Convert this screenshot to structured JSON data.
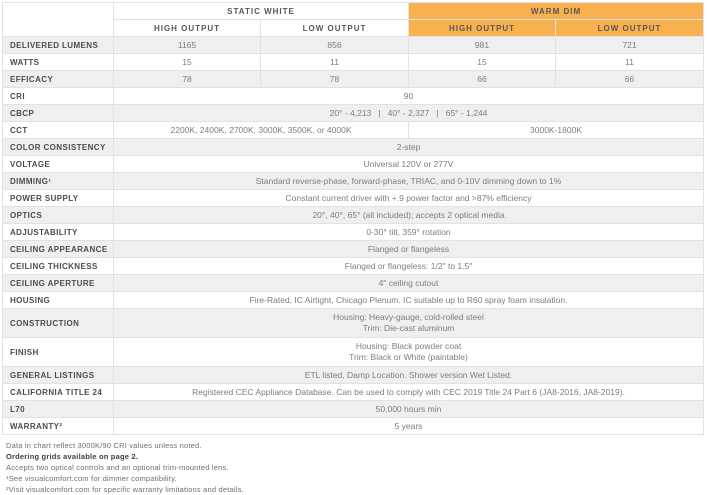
{
  "colors": {
    "warm_dim_orange": "#f8b14e",
    "zebra_gray": "#efeff0",
    "grid_border": "#e2e2e3",
    "label_text": "#4b4c4e",
    "value_text": "#7c7d80"
  },
  "table": {
    "corner_label": "",
    "groups": [
      {
        "label": "STATIC WHITE",
        "style": "white"
      },
      {
        "label": "WARM DIM",
        "style": "orange"
      }
    ],
    "subheaders": [
      "HIGH OUTPUT",
      "LOW OUTPUT",
      "HIGH OUTPUT",
      "LOW OUTPUT"
    ],
    "rows": [
      {
        "label": "DELIVERED LUMENS",
        "cells": [
          "1165",
          "856",
          "981",
          "721"
        ]
      },
      {
        "label": "WATTS",
        "cells": [
          "15",
          "11",
          "15",
          "11"
        ]
      },
      {
        "label": "EFFICACY",
        "cells": [
          "78",
          "78",
          "66",
          "66"
        ]
      },
      {
        "label": "CRI",
        "value": "90"
      },
      {
        "label": "CBCP",
        "value": "20° - 4,213   |   40° - 2,327   |   65° - 1,244"
      },
      {
        "label": "CCT",
        "halves": [
          "2200K, 2400K, 2700K, 3000K, 3500K, or 4000K",
          "3000K-1800K"
        ]
      },
      {
        "label": "COLOR CONSISTENCY",
        "value": "2-step"
      },
      {
        "label": "VOLTAGE",
        "value": "Universal 120V or 277V"
      },
      {
        "label": "DIMMING¹",
        "value": "Standard reverse-phase, forward-phase, TRIAC, and 0-10V dimming down to 1%"
      },
      {
        "label": "POWER SUPPLY",
        "value": "Constant current driver with +.9 power factor and >87% efficiency"
      },
      {
        "label": "OPTICS",
        "value": "20°, 40°, 65° (all included); accepts 2 optical media"
      },
      {
        "label": "ADJUSTABILITY",
        "value": "0-30° tilt, 359° rotation"
      },
      {
        "label": "CEILING APPEARANCE",
        "value": "Flanged or flangeless"
      },
      {
        "label": "CEILING THICKNESS",
        "value": "Flanged or flangeless: 1/2\" to 1.5\""
      },
      {
        "label": "CEILING APERTURE",
        "value": "4\" ceiling cutout"
      },
      {
        "label": "HOUSING",
        "value": "Fire-Rated, IC Airtight, Chicago Plenum. IC suitable up to R60 spray foam insulation."
      },
      {
        "label": "CONSTRUCTION",
        "lines": [
          "Housing: Heavy-gauge, cold-rolled steel",
          "Trim: Die-cast aluminum"
        ]
      },
      {
        "label": "FINISH",
        "lines": [
          "Housing: Black powder coat",
          "Trim: Black or White (paintable)"
        ]
      },
      {
        "label": "GENERAL LISTINGS",
        "value": "ETL listed, Damp Location. Shower version Wet Listed."
      },
      {
        "label": "CALIFORNIA TITLE 24",
        "value": "Registered CEC Appliance Database. Can be used to comply with CEC 2019 Title 24 Part 6 (JA8-2016, JA8-2019)."
      },
      {
        "label": "L70",
        "value": "50,000 hours min"
      },
      {
        "label": "WARRANTY²",
        "value": "5 years"
      }
    ]
  },
  "footnotes": [
    {
      "text": "Data in chart reflect 3000K/90 CRI values unless noted."
    },
    {
      "text": "Ordering grids available on page 2."
    },
    {
      "text": "Accepts two optical controls and an optional trim-mounted lens."
    },
    {
      "text": "¹See visualcomfort.com for dimmer compatibility."
    },
    {
      "text": "²Visit visualcomfort.com for specific warranty limitations and details."
    }
  ]
}
